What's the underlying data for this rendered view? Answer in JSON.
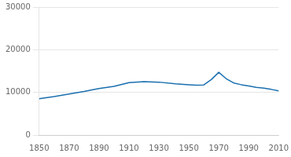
{
  "chart_data": {
    "type": "line",
    "x": [
      1850,
      1860,
      1870,
      1880,
      1890,
      1900,
      1910,
      1920,
      1930,
      1941,
      1950,
      1955,
      1960,
      1965,
      1970,
      1975,
      1980,
      1985,
      1990,
      1995,
      2000,
      2005,
      2010
    ],
    "values": [
      8500,
      9000,
      9600,
      10200,
      10900,
      11400,
      12300,
      12500,
      12400,
      12000,
      11800,
      11700,
      11750,
      13000,
      14700,
      13200,
      12200,
      11800,
      11500,
      11200,
      11000,
      10700,
      10350
    ],
    "color": "#1a6faf",
    "xlim": [
      1850,
      2010
    ],
    "xticks": [
      1850,
      1870,
      1890,
      1910,
      1930,
      1950,
      1970,
      1990,
      2010
    ],
    "ylim": [
      0,
      30000
    ],
    "yticks": [
      0,
      10000,
      20000,
      30000
    ],
    "grid": "y"
  }
}
